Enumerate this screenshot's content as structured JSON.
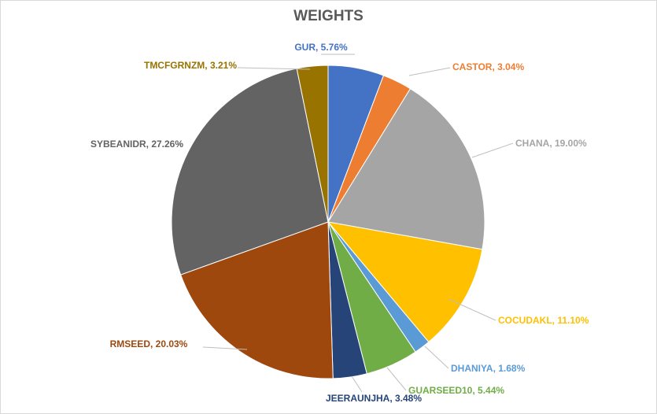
{
  "chart_data": {
    "type": "pie",
    "title": "WEIGHTS",
    "slices": [
      {
        "label": "GUR",
        "value": 5.76,
        "text": "GUR, 5.76%",
        "color": "#4472C4"
      },
      {
        "label": "CASTOR",
        "value": 3.04,
        "text": "CASTOR, 3.04%",
        "color": "#ED7D31"
      },
      {
        "label": "CHANA",
        "value": 19.0,
        "text": "CHANA, 19.00%",
        "color": "#A5A5A5"
      },
      {
        "label": "COCUDAKL",
        "value": 11.1,
        "text": "COCUDAKL, 11.10%",
        "color": "#FFC000"
      },
      {
        "label": "DHANIYA",
        "value": 1.68,
        "text": "DHANIYA, 1.68%",
        "color": "#5B9BD5"
      },
      {
        "label": "GUARSEED10",
        "value": 5.44,
        "text": "GUARSEED10, 5.44%",
        "color": "#70AD47"
      },
      {
        "label": "JEERAUNJHA",
        "value": 3.48,
        "text": "JEERAUNJHA, 3.48%",
        "color": "#264478"
      },
      {
        "label": "RMSEED",
        "value": 20.03,
        "text": "RMSEED, 20.03%",
        "color": "#9E480E"
      },
      {
        "label": "SYBEANIDR",
        "value": 27.26,
        "text": "SYBEANIDR, 27.26%",
        "color": "#636363"
      },
      {
        "label": "TMCFGRNZM",
        "value": 3.21,
        "text": "TMCFGRNZM, 3.21%",
        "color": "#997300"
      }
    ]
  }
}
